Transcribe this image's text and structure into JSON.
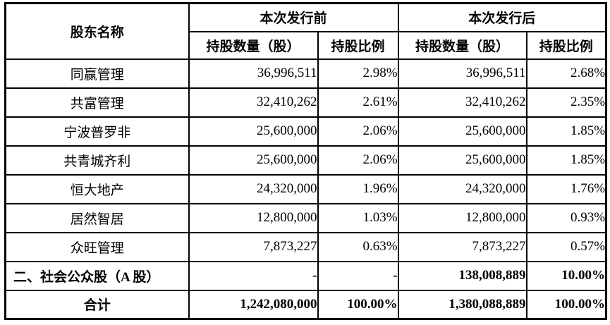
{
  "table": {
    "header": {
      "shareholder_col": "股东名称",
      "pre_group": "本次发行前",
      "post_group": "本次发行后",
      "pre_shares_label": "持股数量（股）",
      "pre_ratio_label": "持股比例",
      "post_shares_label": "持股数量（股）",
      "post_ratio_label": "持股比例"
    },
    "shareholder_rows": [
      {
        "name": "同赢管理",
        "pre_shares": "36,996,511",
        "pre_ratio": "2.98%",
        "post_shares": "36,996,511",
        "post_ratio": "2.68%"
      },
      {
        "name": "共富管理",
        "pre_shares": "32,410,262",
        "pre_ratio": "2.61%",
        "post_shares": "32,410,262",
        "post_ratio": "2.35%"
      },
      {
        "name": "宁波普罗非",
        "pre_shares": "25,600,000",
        "pre_ratio": "2.06%",
        "post_shares": "25,600,000",
        "post_ratio": "1.85%"
      },
      {
        "name": "共青城齐利",
        "pre_shares": "25,600,000",
        "pre_ratio": "2.06%",
        "post_shares": "25,600,000",
        "post_ratio": "1.85%"
      },
      {
        "name": "恒大地产",
        "pre_shares": "24,320,000",
        "pre_ratio": "1.96%",
        "post_shares": "24,320,000",
        "post_ratio": "1.76%"
      },
      {
        "name": "居然智居",
        "pre_shares": "12,800,000",
        "pre_ratio": "1.03%",
        "post_shares": "12,800,000",
        "post_ratio": "0.93%"
      },
      {
        "name": "众旺管理",
        "pre_shares": "7,873,227",
        "pre_ratio": "0.63%",
        "post_shares": "7,873,227",
        "post_ratio": "0.57%"
      }
    ],
    "public_row": {
      "name": "二、社会公众股（A 股）",
      "pre_shares": "-",
      "pre_ratio": "-",
      "post_shares": "138,008,889",
      "post_ratio": "10.00%"
    },
    "total_row": {
      "name": "合计",
      "pre_shares": "1,242,080,000",
      "pre_ratio": "100.00%",
      "post_shares": "1,380,088,889",
      "post_ratio": "100.00%"
    },
    "colors": {
      "border": "#000000",
      "text": "#000000",
      "background": "#ffffff"
    }
  }
}
